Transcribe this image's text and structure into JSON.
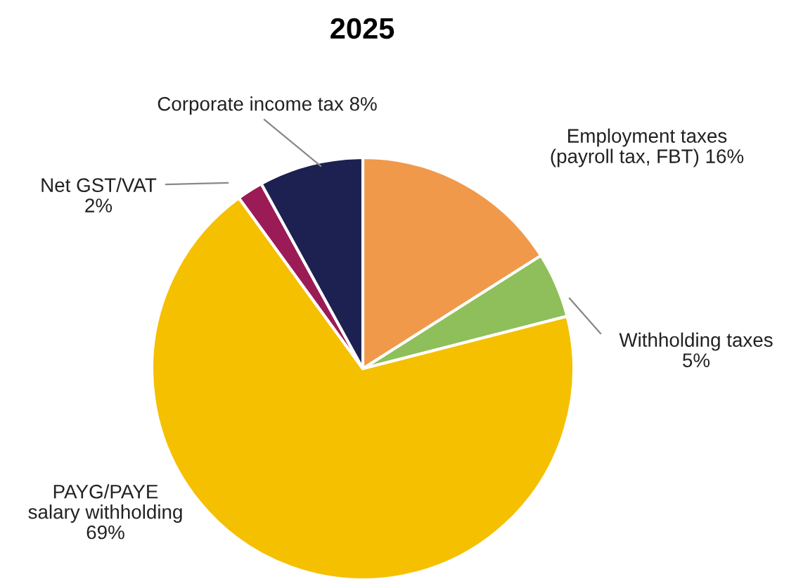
{
  "chart_data": {
    "type": "pie",
    "title": "2025",
    "categories": [
      "Employment taxes\n(payroll tax, FBT)",
      "Withholding taxes",
      "PAYG/PAYE\nsalary withholding",
      "Net GST/VAT",
      "Corporate income tax"
    ],
    "values": [
      16,
      5,
      69,
      2,
      8
    ],
    "value_labels": [
      "16%",
      "5%",
      "69%",
      "2%",
      "8%"
    ],
    "colors": [
      "#f0994a",
      "#8fbf5a",
      "#f5c000",
      "#9b1b57",
      "#1c2151"
    ]
  }
}
